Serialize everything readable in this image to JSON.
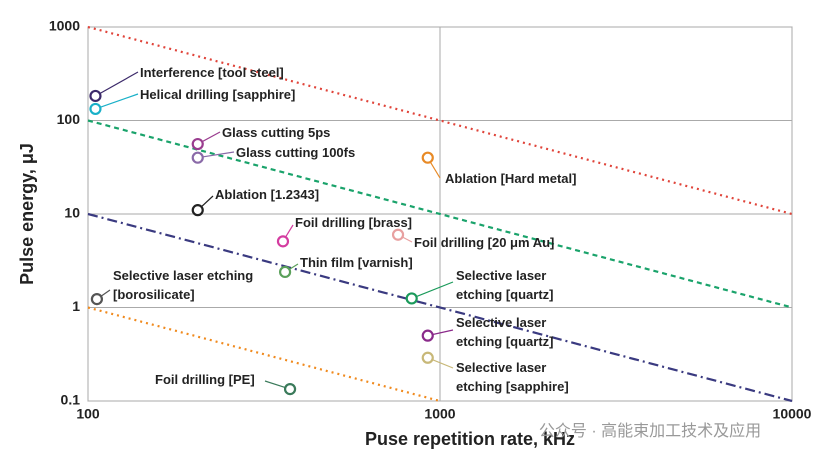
{
  "chart_data": {
    "type": "scatter",
    "xlabel": "Puse repetition rate, kHz",
    "ylabel": "Pulse energy, μJ",
    "log_x": true,
    "log_y": true,
    "grid": true,
    "xlim": [
      100,
      10000
    ],
    "xticks": [
      100,
      1000,
      10000
    ],
    "ylim": [
      0.1,
      1000
    ],
    "yticks": [
      0.1,
      1,
      10,
      100,
      1000
    ],
    "lines": [
      {
        "x": [
          100,
          10000
        ],
        "y": [
          1000,
          10
        ],
        "color": "#e0443a",
        "style": "dotted"
      },
      {
        "x": [
          100,
          10000
        ],
        "y": [
          100,
          1
        ],
        "color": "#1aa36b",
        "style": "dashed"
      },
      {
        "x": [
          100,
          10000
        ],
        "y": [
          10,
          0.1
        ],
        "color": "#3a3a80",
        "style": "dashdot"
      },
      {
        "x": [
          100,
          1000
        ],
        "y": [
          1,
          0.1
        ],
        "color": "#f08a1e",
        "style": "dotted"
      }
    ],
    "points": [
      {
        "label": "Interference [tool steel]",
        "x": 105,
        "y": 183,
        "color": "#3c2a6a"
      },
      {
        "label": "Helical drilling [sapphire]",
        "x": 105,
        "y": 133,
        "color": "#19b0c8"
      },
      {
        "label": "Glass cutting 5ps",
        "x": 205,
        "y": 56,
        "color": "#9a3d8f"
      },
      {
        "label": "Glass cutting 100fs",
        "x": 205,
        "y": 40,
        "color": "#8a6aa8"
      },
      {
        "label": "Ablation [1.2343]",
        "x": 205,
        "y": 11,
        "color": "#222222"
      },
      {
        "label": "Ablation [Hard metal]",
        "x": 923,
        "y": 40,
        "color": "#e88a26"
      },
      {
        "label": "Foil drilling [brass]",
        "x": 358,
        "y": 5.1,
        "color": "#d43ca0"
      },
      {
        "label": "Foil drilling [20 μm Au]",
        "x": 760,
        "y": 6,
        "color": "#e8a0a0"
      },
      {
        "label": "Thin film [varnish]",
        "x": 363,
        "y": 2.4,
        "color": "#5aa05a"
      },
      {
        "label": "Selective laser etching [borosilicate]",
        "x": 106,
        "y": 1.23,
        "color": "#555555"
      },
      {
        "label": "Selective laser etching [quartz]",
        "x": 831,
        "y": 1.25,
        "color": "#1a9a5a"
      },
      {
        "label": "Selective laser etching [quartz]",
        "x": 923,
        "y": 0.5,
        "color": "#8a2a8a"
      },
      {
        "label": "Selective laser etching [sapphire]",
        "x": 923,
        "y": 0.29,
        "color": "#c8b878"
      },
      {
        "label": "Foil drilling [PE]",
        "x": 375,
        "y": 0.134,
        "color": "#3a7a5a"
      }
    ],
    "watermark": "公众号 · 高能束加工技术及应用"
  }
}
